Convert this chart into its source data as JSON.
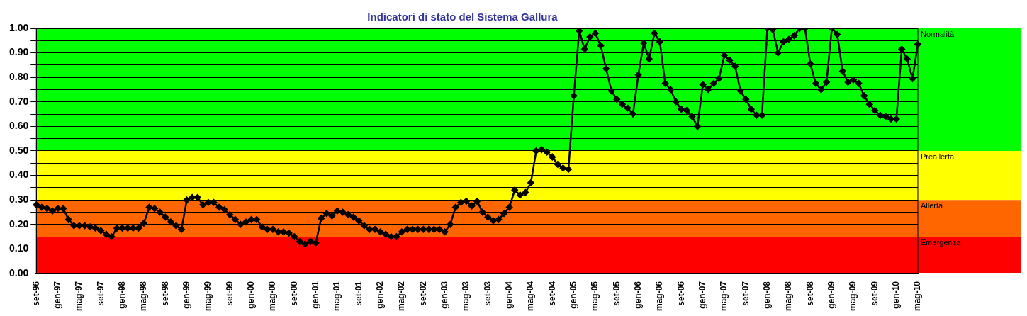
{
  "chart_data": {
    "type": "line",
    "title": "Indicatori di stato del Sistema Gallura",
    "categories": [
      "set-96",
      null,
      null,
      null,
      "gen-97",
      null,
      null,
      null,
      "mag-97",
      null,
      null,
      null,
      "set-97",
      null,
      null,
      null,
      "gen-98",
      null,
      null,
      null,
      "mag-98",
      null,
      null,
      null,
      "set-98",
      null,
      null,
      null,
      "gen-99",
      null,
      null,
      null,
      "mag-99",
      null,
      null,
      null,
      "set-99",
      null,
      null,
      null,
      "gen-00",
      null,
      null,
      null,
      "mag-00",
      null,
      null,
      null,
      "set-00",
      null,
      null,
      null,
      "gen-01",
      null,
      null,
      null,
      "mag-01",
      null,
      null,
      null,
      "set-01",
      null,
      null,
      null,
      "gen-02",
      null,
      null,
      null,
      "mag-02",
      null,
      null,
      null,
      "set-02",
      null,
      null,
      null,
      "gen-03",
      null,
      null,
      null,
      "mag-03",
      null,
      null,
      null,
      "set-03",
      null,
      null,
      null,
      "gen-04",
      null,
      null,
      null,
      "mag-04",
      null,
      null,
      null,
      "set-04",
      null,
      null,
      null,
      "gen-05",
      null,
      null,
      null,
      "mag-05",
      null,
      null,
      null,
      "set-05",
      null,
      null,
      null,
      "gen-06",
      null,
      null,
      null,
      "mag-06",
      null,
      null,
      null,
      "set-06",
      null,
      null,
      null,
      "gen-07",
      null,
      null,
      null,
      "mag-07",
      null,
      null,
      null,
      "set-07",
      null,
      null,
      null,
      "gen-08",
      null,
      null,
      null,
      "mag-08",
      null,
      null,
      null,
      "set-08",
      null,
      null,
      null,
      "gen-09",
      null,
      null,
      null,
      "mag-09",
      null,
      null,
      null,
      "set-09",
      null,
      null,
      null,
      "gen-10",
      null,
      null,
      null,
      "mag-10"
    ],
    "series": [
      {
        "color": "#000000",
        "values": [
          0.28,
          0.27,
          0.265,
          0.255,
          0.265,
          0.265,
          0.22,
          0.195,
          0.195,
          0.195,
          0.19,
          0.185,
          0.175,
          0.16,
          0.15,
          0.185,
          0.185,
          0.185,
          0.185,
          0.185,
          0.205,
          0.27,
          0.265,
          0.25,
          0.23,
          0.21,
          0.195,
          0.18,
          0.3,
          0.31,
          0.31,
          0.28,
          0.29,
          0.29,
          0.27,
          0.26,
          0.24,
          0.22,
          0.2,
          0.21,
          0.22,
          0.22,
          0.19,
          0.18,
          0.18,
          0.17,
          0.17,
          0.165,
          0.15,
          0.13,
          0.12,
          0.13,
          0.125,
          0.225,
          0.245,
          0.235,
          0.255,
          0.25,
          0.24,
          0.23,
          0.215,
          0.195,
          0.18,
          0.18,
          0.17,
          0.16,
          0.15,
          0.15,
          0.17,
          0.18,
          0.18,
          0.18,
          0.18,
          0.18,
          0.18,
          0.18,
          0.17,
          0.2,
          0.27,
          0.29,
          0.295,
          0.275,
          0.295,
          0.25,
          0.23,
          0.215,
          0.22,
          0.245,
          0.27,
          0.34,
          0.32,
          0.33,
          0.37,
          0.5,
          0.505,
          0.495,
          0.475,
          0.445,
          0.43,
          0.425,
          0.725,
          0.99,
          0.915,
          0.965,
          0.98,
          0.93,
          0.835,
          0.745,
          0.71,
          0.69,
          0.675,
          0.65,
          0.81,
          0.94,
          0.875,
          0.98,
          0.945,
          0.775,
          0.75,
          0.7,
          0.67,
          0.665,
          0.64,
          0.6,
          0.77,
          0.75,
          0.775,
          0.795,
          0.89,
          0.87,
          0.845,
          0.745,
          0.71,
          0.67,
          0.645,
          0.645,
          1.0,
          0.995,
          0.9,
          0.945,
          0.955,
          0.97,
          1.0,
          1.0,
          0.855,
          0.775,
          0.75,
          0.78,
          1.0,
          0.975,
          0.825,
          0.78,
          0.79,
          0.775,
          0.725,
          0.69,
          0.665,
          0.645,
          0.64,
          0.63,
          0.63,
          0.915,
          0.875,
          0.795,
          0.935
        ]
      }
    ],
    "marker": "diamond",
    "ylim": [
      0,
      1
    ],
    "yticks": [
      {
        "value": 0,
        "label": "0.00"
      },
      {
        "value": 0.05,
        "label": null
      },
      {
        "value": 0.1,
        "label": "0.10"
      },
      {
        "value": 0.15,
        "label": null
      },
      {
        "value": 0.2,
        "label": "0.20"
      },
      {
        "value": 0.25,
        "label": null
      },
      {
        "value": 0.3,
        "label": "0.30"
      },
      {
        "value": 0.35,
        "label": null
      },
      {
        "value": 0.4,
        "label": "0.40"
      },
      {
        "value": 0.45,
        "label": null
      },
      {
        "value": 0.5,
        "label": "0.50"
      },
      {
        "value": 0.55,
        "label": null
      },
      {
        "value": 0.6,
        "label": "0.60"
      },
      {
        "value": 0.65,
        "label": null
      },
      {
        "value": 0.7,
        "label": "0.70"
      },
      {
        "value": 0.75,
        "label": null
      },
      {
        "value": 0.8,
        "label": "0.80"
      },
      {
        "value": 0.85,
        "label": null
      },
      {
        "value": 0.9,
        "label": "0.90"
      },
      {
        "value": 0.95,
        "label": null
      },
      {
        "value": 1,
        "label": "1.00"
      }
    ],
    "grid": "y",
    "legend": false,
    "bands": [
      {
        "axis": "y",
        "from": 0.5,
        "to": 1,
        "label": "Normalità",
        "color": "#00ff00"
      },
      {
        "axis": "y",
        "from": 0.3,
        "to": 0.5,
        "label": "Preallerta",
        "color": "#ffff00"
      },
      {
        "axis": "y",
        "from": 0.15,
        "to": 0.3,
        "label": "Allerta",
        "color": "#ff6600"
      },
      {
        "axis": "y",
        "from": 0,
        "to": 0.15,
        "label": "Emergenza",
        "color": "#ff0000"
      }
    ]
  }
}
